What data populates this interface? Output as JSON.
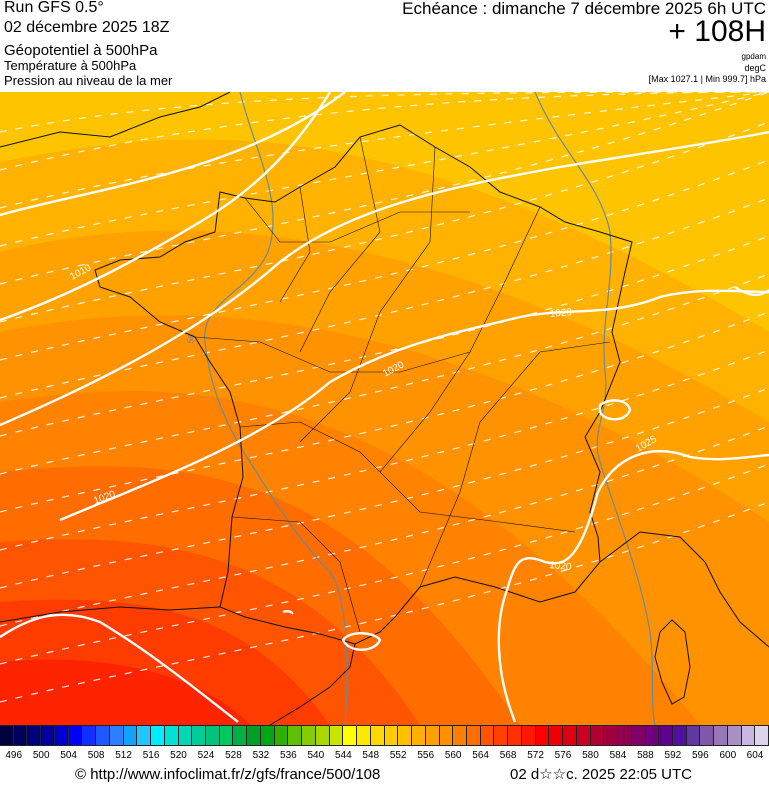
{
  "header": {
    "model": "Run GFS 0.5°",
    "run_date": "02 décembre 2025 18Z",
    "layer1": "Géopotentiel à 500hPa",
    "layer2": "Température à 500hPa",
    "layer3": "Pression au niveau de la mer",
    "valid_time": "Echéance : dimanche 7 décembre 2025 6h UTC",
    "lead": "+ 108H",
    "unit1": "gpdam",
    "unit2": "degC",
    "pressure_range": "[Max 1027.1 | Min 999.7] hPa"
  },
  "map": {
    "isobar_labels": [
      "1010",
      "1020",
      "1020",
      "1020",
      "1025",
      "1020"
    ],
    "isotherm_label": "56",
    "band_colors": [
      "#ffc400",
      "#ffb200",
      "#ffa200",
      "#ff9200",
      "#ff8200",
      "#ff6c00",
      "#ff5400",
      "#ff3c00",
      "#ff2400"
    ]
  },
  "colorbar": {
    "labels": [
      "496",
      "500",
      "504",
      "508",
      "512",
      "516",
      "520",
      "524",
      "528",
      "532",
      "536",
      "540",
      "544",
      "548",
      "552",
      "556",
      "560",
      "564",
      "568",
      "572",
      "576",
      "580",
      "584",
      "588",
      "592",
      "596",
      "600",
      "604"
    ],
    "colors": [
      "#000040",
      "#00005c",
      "#00007c",
      "#0000a0",
      "#0000d0",
      "#0000ff",
      "#1030ff",
      "#2058ff",
      "#2c80ff",
      "#10a4ff",
      "#20c4ff",
      "#00ecff",
      "#00e2d8",
      "#00d8b8",
      "#00cc9c",
      "#00c47c",
      "#00c860",
      "#00b044",
      "#00a028",
      "#00a818",
      "#30b000",
      "#60c000",
      "#88cc00",
      "#a8d800",
      "#c8e400",
      "#ffff00",
      "#ffe800",
      "#ffd800",
      "#ffcc00",
      "#ffc000",
      "#ffb000",
      "#ffa000",
      "#ff9000",
      "#ff8000",
      "#ff6c00",
      "#ff5400",
      "#ff4000",
      "#ff3000",
      "#ff1800",
      "#ff0000",
      "#f00000",
      "#e00010",
      "#c80024",
      "#b00034",
      "#a00040",
      "#900050",
      "#800068",
      "#700080",
      "#600090",
      "#5010a0",
      "#6038a0",
      "#8058a8",
      "#9878b8",
      "#a890c4",
      "#c8b8e0",
      "#dcd4ec"
    ]
  },
  "footer": {
    "url": "© http://www.infoclimat.fr/z/gfs/france/500/108",
    "generated": "02 d☆☆c. 2025 22:05 UTC"
  }
}
